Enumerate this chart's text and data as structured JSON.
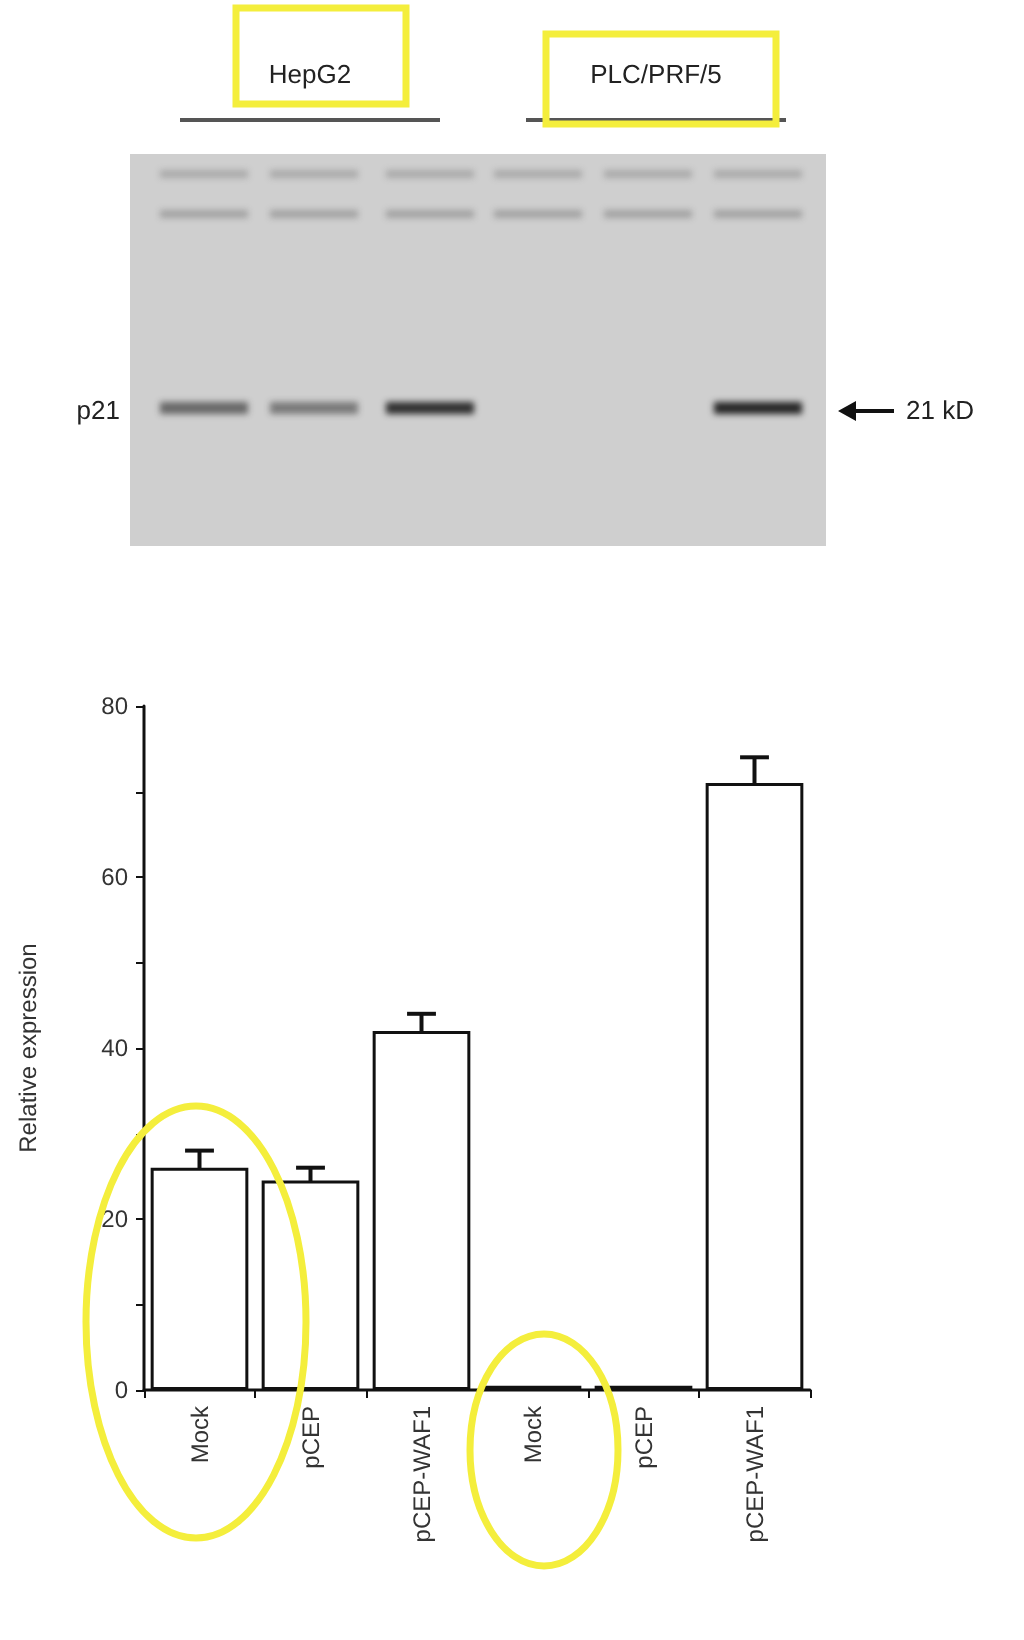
{
  "chart_data": {
    "type": "bar",
    "ylabel": "Relative expression",
    "annotations": [
      "HepG2",
      "PLC/PRF/5",
      "p21",
      "21 kD"
    ],
    "categories": [
      "Mock",
      "pCEP",
      "pCEP-WAF1",
      "Mock",
      "pCEP",
      "pCEP-WAF1"
    ],
    "values": [
      26,
      24.5,
      42,
      0.5,
      0.5,
      71
    ],
    "errors": [
      2,
      1.5,
      2,
      null,
      null,
      3
    ],
    "color": "#ffffff",
    "ylim": [
      0,
      80
    ],
    "yticks": [
      0,
      {
        "value": 10,
        "label": null
      },
      20,
      {
        "value": 30,
        "label": null
      },
      40,
      {
        "value": 50,
        "label": null
      },
      60,
      {
        "value": 70,
        "label": null
      },
      80
    ],
    "grid": false
  }
}
